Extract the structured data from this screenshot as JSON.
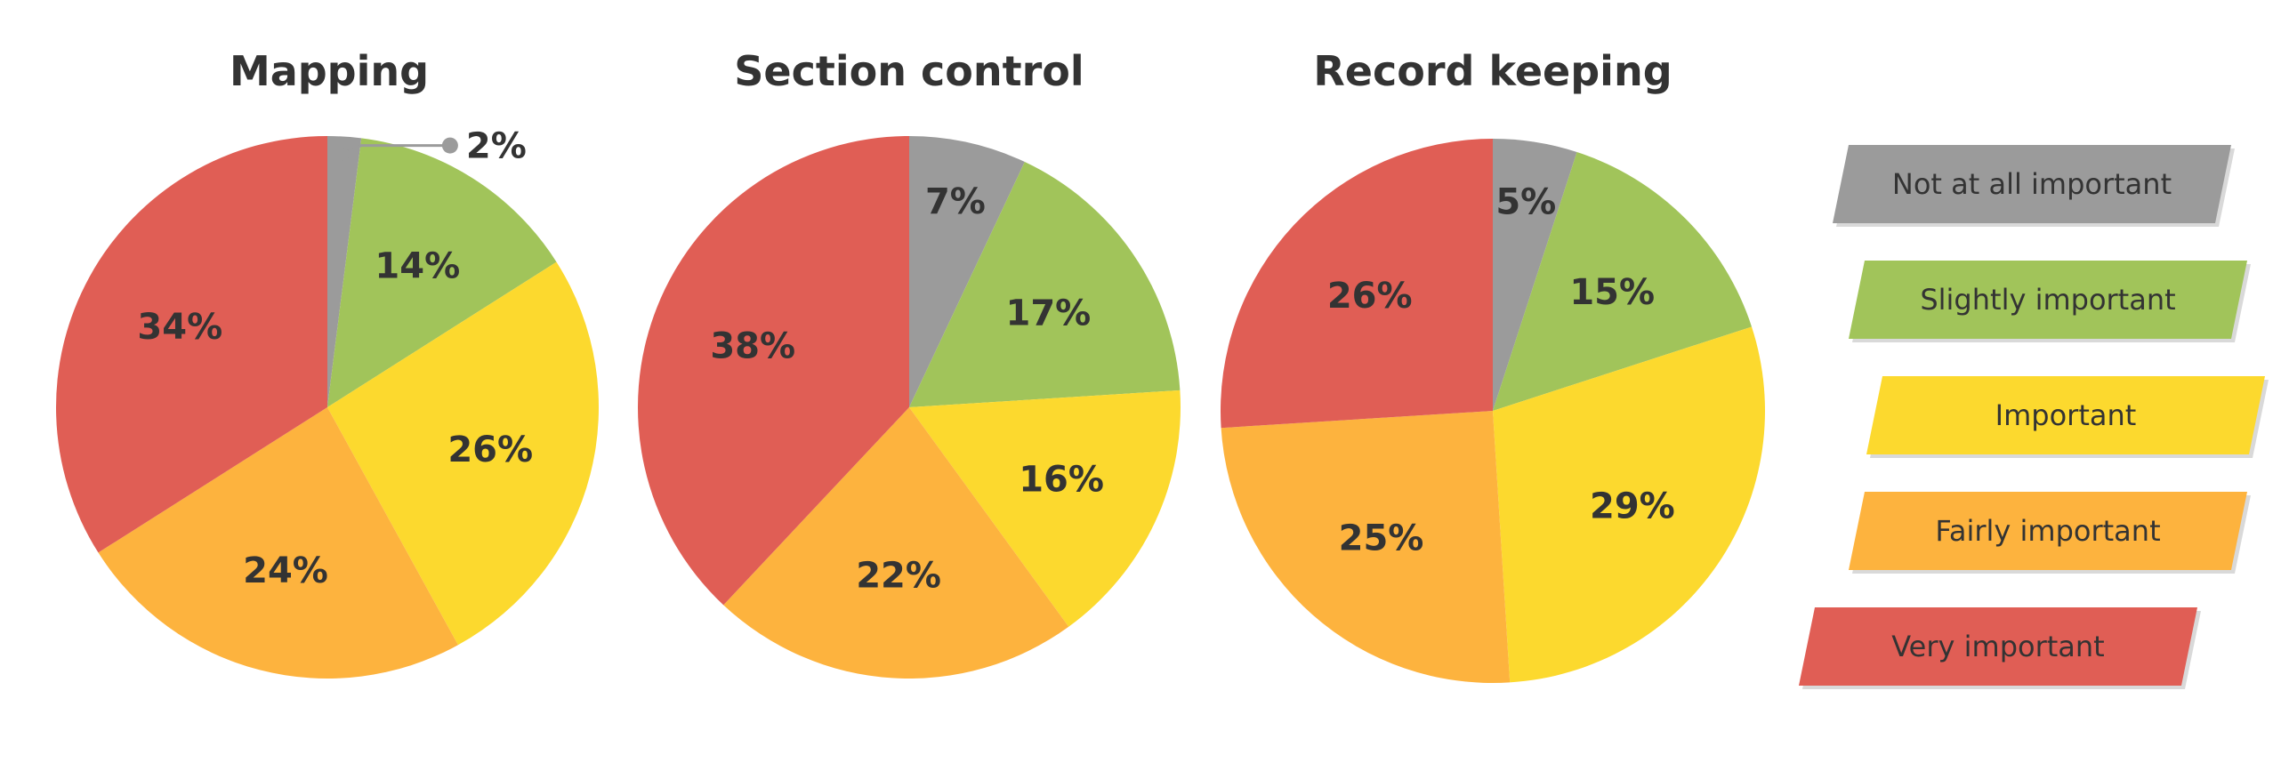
{
  "legend": [
    {
      "label": "Not at all important",
      "color": "#9b9b9b"
    },
    {
      "label": "Slightly important",
      "color": "#a1c45a"
    },
    {
      "label": "Important",
      "color": "#fcd92e"
    },
    {
      "label": "Fairly important",
      "color": "#fdb33e"
    },
    {
      "label": "Very important",
      "color": "#e05e55"
    }
  ],
  "chart_data": [
    {
      "type": "pie",
      "title": "Mapping",
      "slices": [
        {
          "category": "Not at all important",
          "value": 2,
          "label": "2%"
        },
        {
          "category": "Slightly important",
          "value": 14,
          "label": "14%"
        },
        {
          "category": "Important",
          "value": 26,
          "label": "26%"
        },
        {
          "category": "Fairly important",
          "value": 24,
          "label": "24%"
        },
        {
          "category": "Very important",
          "value": 34,
          "label": "34%"
        }
      ]
    },
    {
      "type": "pie",
      "title": "Section control",
      "slices": [
        {
          "category": "Not at all important",
          "value": 7,
          "label": "7%"
        },
        {
          "category": "Slightly important",
          "value": 17,
          "label": "17%"
        },
        {
          "category": "Important",
          "value": 16,
          "label": "16%"
        },
        {
          "category": "Fairly important",
          "value": 22,
          "label": "22%"
        },
        {
          "category": "Very important",
          "value": 38,
          "label": "38%"
        }
      ]
    },
    {
      "type": "pie",
      "title": "Record keeping",
      "slices": [
        {
          "category": "Not at all important",
          "value": 5,
          "label": "5%"
        },
        {
          "category": "Slightly important",
          "value": 15,
          "label": "15%"
        },
        {
          "category": "Important",
          "value": 29,
          "label": "29%"
        },
        {
          "category": "Fairly important",
          "value": 25,
          "label": "25%"
        },
        {
          "category": "Very important",
          "value": 26,
          "label": "26%"
        }
      ]
    }
  ]
}
